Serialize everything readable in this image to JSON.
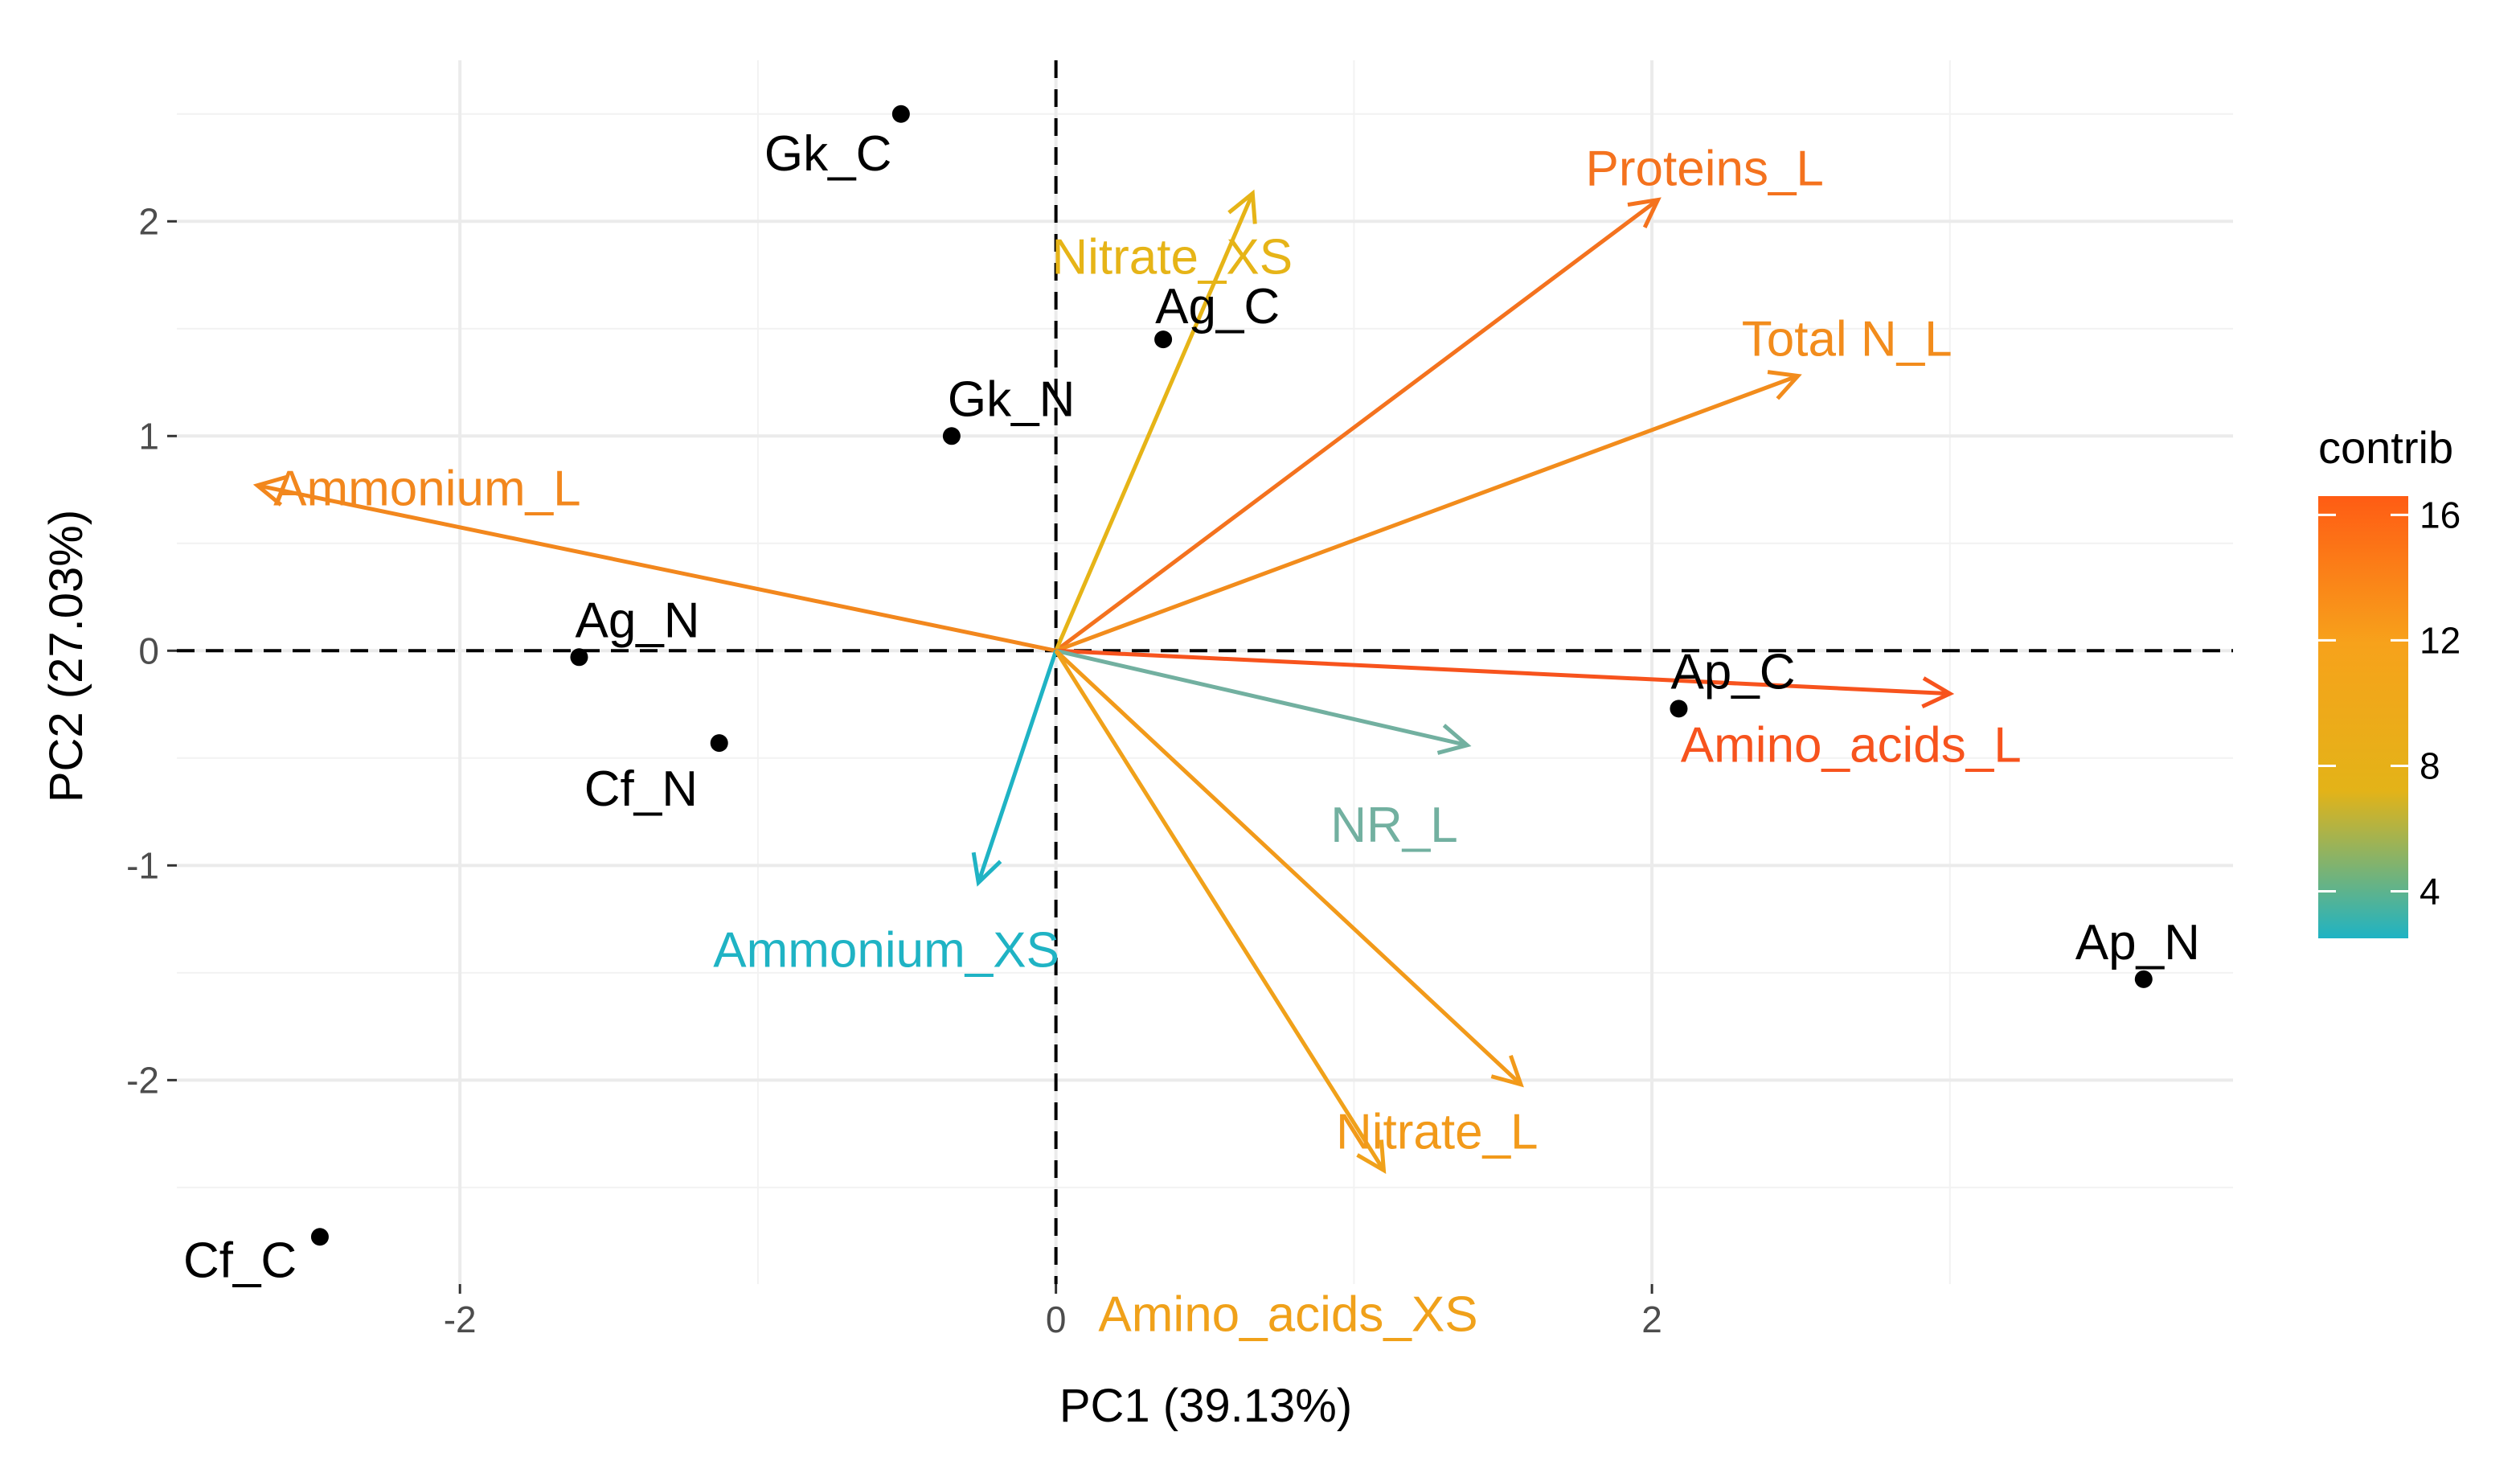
{
  "chart_data": {
    "type": "scatter",
    "subtype": "pca-biplot",
    "xlabel": "PC1 (39.13%)",
    "ylabel": "PC2 (27.03%)",
    "xlim": [
      -2.95,
      3.95
    ],
    "ylim": [
      -2.95,
      2.75
    ],
    "x_ticks": [
      -2,
      0,
      2
    ],
    "x_tick_labels": [
      "-2",
      "0",
      "2"
    ],
    "y_ticks": [
      -2,
      -1,
      0,
      1,
      2
    ],
    "y_tick_labels": [
      "-2",
      "-1",
      "0",
      "1",
      "2"
    ],
    "grid": true,
    "reference_lines": {
      "x": 0,
      "y": 0,
      "style": "dashed"
    },
    "individuals": [
      {
        "name": "Gk_C",
        "x": -0.52,
        "y": 2.5
      },
      {
        "name": "Ag_C",
        "x": 0.36,
        "y": 1.45
      },
      {
        "name": "Gk_N",
        "x": -0.35,
        "y": 1.0
      },
      {
        "name": "Ag_N",
        "x": -1.6,
        "y": -0.03
      },
      {
        "name": "Cf_N",
        "x": -1.13,
        "y": -0.43
      },
      {
        "name": "Ap_C",
        "x": 2.09,
        "y": -0.27
      },
      {
        "name": "Ap_N",
        "x": 3.65,
        "y": -1.53
      },
      {
        "name": "Cf_C",
        "x": -2.47,
        "y": -2.73
      }
    ],
    "variables": [
      {
        "name": "Proteins_L",
        "x": 2.02,
        "y": 2.1,
        "contrib": 15.5,
        "color": "#F4721E"
      },
      {
        "name": "Total N_L",
        "x": 2.49,
        "y": 1.28,
        "contrib": 13.8,
        "color": "#F28C1C"
      },
      {
        "name": "Nitrate_XS",
        "x": 0.66,
        "y": 2.13,
        "contrib": 9.5,
        "color": "#E6B417"
      },
      {
        "name": "Ammonium_L",
        "x": -2.68,
        "y": 0.77,
        "contrib": 14.2,
        "color": "#F2871D"
      },
      {
        "name": "Amino_acids_L",
        "x": 3.0,
        "y": -0.2,
        "contrib": 16.3,
        "color": "#F7531D"
      },
      {
        "name": "NR_L",
        "x": 1.38,
        "y": -0.44,
        "contrib": 5.0,
        "color": "#72B0A0"
      },
      {
        "name": "Ammonium_XS",
        "x": -0.26,
        "y": -1.08,
        "contrib": 2.5,
        "color": "#1FB3C4"
      },
      {
        "name": "Nitrate_L",
        "x": 1.56,
        "y": -2.02,
        "contrib": 12.5,
        "color": "#F29A1A"
      },
      {
        "name": "Amino_acids_XS",
        "x": 1.1,
        "y": -2.42,
        "contrib": 12.0,
        "color": "#F0A11A"
      }
    ],
    "legend": {
      "title": "contrib",
      "position": "right",
      "ticks": [
        4,
        8,
        12,
        16
      ],
      "tick_labels": [
        "4",
        "8",
        "12",
        "16"
      ],
      "min": 2.5,
      "max": 16.6,
      "colors": [
        "#1FB3C4",
        "#E3B318",
        "#F7A21B",
        "#FF5C14"
      ]
    }
  }
}
